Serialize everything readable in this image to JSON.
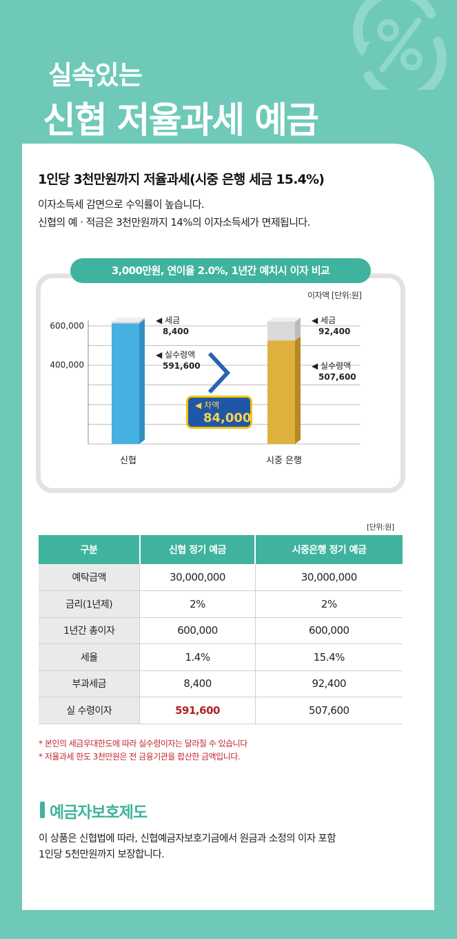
{
  "header": {
    "title_line1": "실속있는",
    "title_line2": "신협 저율과세 예금"
  },
  "summary": {
    "headline": "1인당 3천만원까지 저율과세(시중 은행 세금 15.4%)",
    "line1": "이자소득세 감면으로 수익률이 높습니다.",
    "line2": "신협의 예 · 적금은 3천만원까지 14%의 이자소득세가 면제됩니다."
  },
  "chart_data": {
    "type": "bar",
    "title": "3,000만원, 연이율 2.0%, 1년간 예치시 이자 비교",
    "unit_label": "이자액 [단위:원]",
    "categories": [
      "신협",
      "시중 은행"
    ],
    "ylim": [
      0,
      600000
    ],
    "y_ticks": [
      {
        "value": 600000,
        "label": "600,000"
      },
      {
        "value": 400000,
        "label": "400,000"
      }
    ],
    "series": [
      {
        "name": "실수령액",
        "values": [
          591600,
          507600
        ],
        "labels": [
          "591,600",
          "507,600"
        ]
      },
      {
        "name": "세금",
        "values": [
          8400,
          92400
        ],
        "labels": [
          "8,400",
          "92,400"
        ]
      }
    ],
    "difference": {
      "label": "◀ 차액",
      "value": "84,000"
    },
    "colors": {
      "shinhyup": "#46b0e0",
      "bank": "#ddb13b",
      "tax": "#d9d9d9"
    }
  },
  "table": {
    "unit": "[단위:원]",
    "headers": [
      "구분",
      "신협 정기 예금",
      "시중은행 정기 예금"
    ],
    "rows": [
      [
        "예탁금액",
        "30,000,000",
        "30,000,000"
      ],
      [
        "금리(1년제)",
        "2%",
        "2%"
      ],
      [
        "1년간 총이자",
        "600,000",
        "600,000"
      ],
      [
        "세율",
        "1.4%",
        "15.4%"
      ],
      [
        "부과세금",
        "8,400",
        "92,400"
      ],
      [
        "실 수령이자",
        "591,600",
        "507,600"
      ]
    ]
  },
  "notes": [
    "* 본인의 세금우대한도에 따라 실수령이자는 달라질 수 있습니다",
    "* 저율과세 한도 3천만원은 전 금융기관을 합산한 금액입니다."
  ],
  "protection": {
    "title": "예금자보호제도",
    "line1": "이 상품은 신협법에 따라, 신협예금자보호기금에서 원금과 소정의 이자 포함",
    "line2": "1인당 5천만원까지 보장합니다."
  },
  "icons": {
    "decoration": "percent-cycle-icon"
  }
}
